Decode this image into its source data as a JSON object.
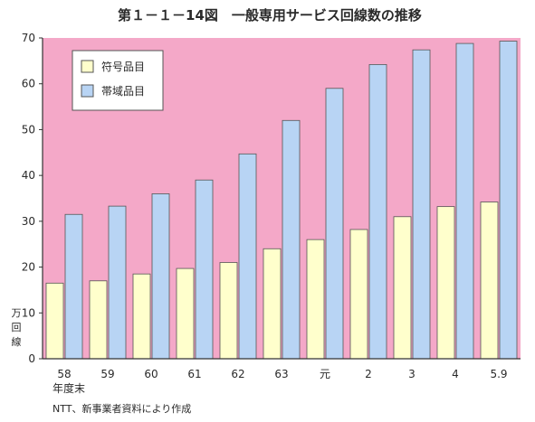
{
  "chart_data": {
    "type": "bar",
    "title": "第１－１－14図　一般専用サービス回線数の推移",
    "ylabel": "万回線",
    "xlabel": "年度末",
    "source": "NTT、新事業者資料により作成",
    "ylim": [
      0,
      70
    ],
    "yticks": [
      0,
      10,
      20,
      30,
      40,
      50,
      60,
      70
    ],
    "categories": [
      "58",
      "59",
      "60",
      "61",
      "62",
      "63",
      "元",
      "2",
      "3",
      "4",
      "5.9"
    ],
    "series": [
      {
        "name": "符号品目",
        "color": "#ffffcc",
        "values": [
          16.5,
          17,
          18.5,
          19.7,
          21,
          24,
          26,
          28.2,
          31,
          33.2,
          34.2
        ]
      },
      {
        "name": "帯域品目",
        "color": "#b8d4f4",
        "values": [
          31.5,
          33.3,
          36,
          39,
          44.7,
          52,
          59,
          64.2,
          67.4,
          68.8,
          69.3
        ]
      }
    ],
    "legend_position": "top-left",
    "grid": false,
    "colors": {
      "plot_background": "#f4a8c8",
      "axis": "#333333"
    }
  }
}
